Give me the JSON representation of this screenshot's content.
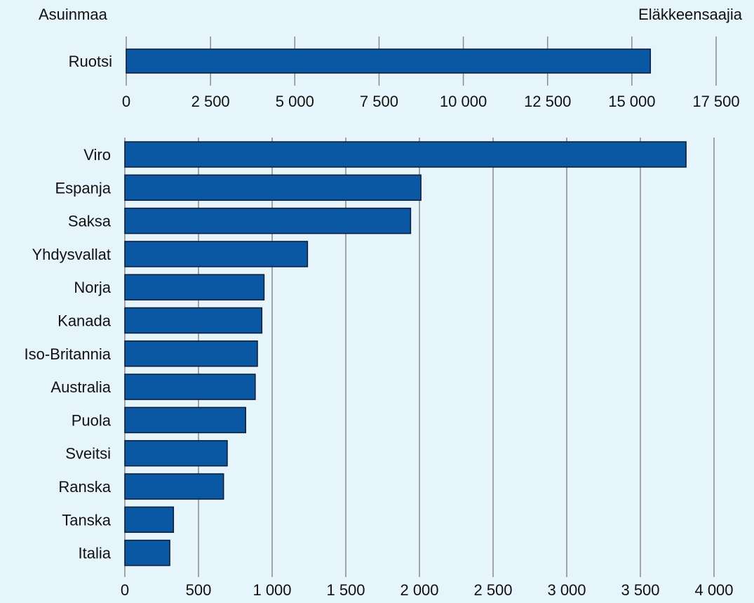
{
  "header": {
    "left_label": "Asuinmaa",
    "right_label": "Eläkkeensaajia"
  },
  "chart_data": [
    {
      "type": "bar",
      "orientation": "horizontal",
      "categories": [
        "Ruotsi"
      ],
      "values": [
        15550
      ],
      "xlim": [
        0,
        17500
      ],
      "xticks": [
        0,
        2500,
        5000,
        7500,
        10000,
        12500,
        15000,
        17500
      ],
      "xtick_labels": [
        "0",
        "2 500",
        "5 000",
        "7 500",
        "10 000",
        "12 500",
        "15 000",
        "17 500"
      ],
      "grid": true,
      "color": "#0a58a4"
    },
    {
      "type": "bar",
      "orientation": "horizontal",
      "categories": [
        "Viro",
        "Espanja",
        "Saksa",
        "Yhdysvallat",
        "Norja",
        "Kanada",
        "Iso-Britannia",
        "Australia",
        "Puola",
        "Sveitsi",
        "Ranska",
        "Tanska",
        "Italia"
      ],
      "values": [
        3810,
        2010,
        1940,
        1240,
        945,
        930,
        900,
        885,
        820,
        695,
        670,
        330,
        305
      ],
      "xlim": [
        0,
        4000
      ],
      "xticks": [
        0,
        500,
        1000,
        1500,
        2000,
        2500,
        3000,
        3500,
        4000
      ],
      "xtick_labels": [
        "0",
        "500",
        "1 000",
        "1 500",
        "2 000",
        "2 500",
        "3 000",
        "3 500",
        "4 000"
      ],
      "grid": true,
      "color": "#0a58a4"
    }
  ]
}
